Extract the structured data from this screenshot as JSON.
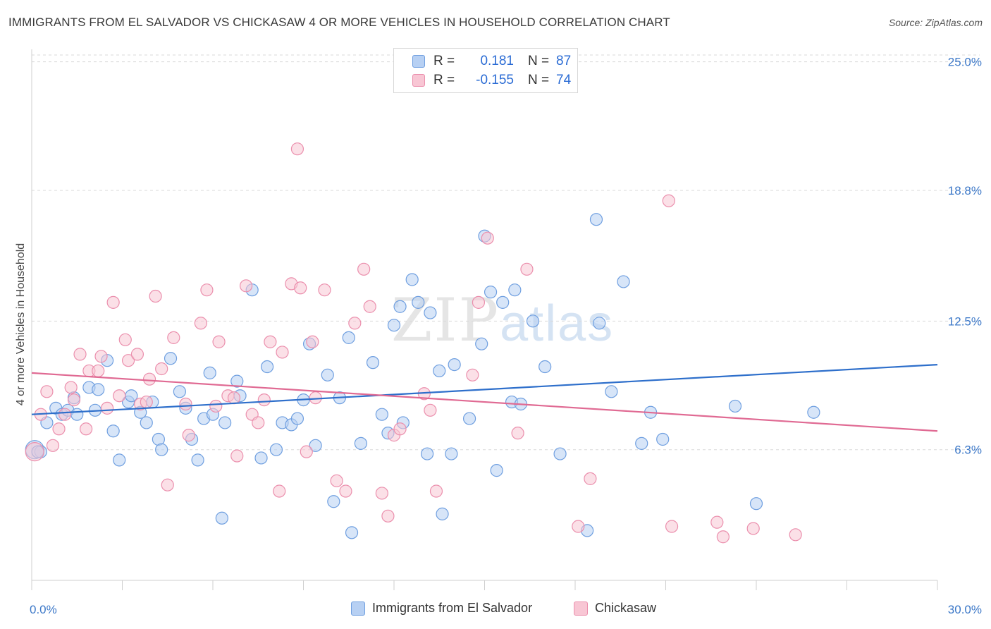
{
  "header": {
    "title": "IMMIGRANTS FROM EL SALVADOR VS CHICKASAW 4 OR MORE VEHICLES IN HOUSEHOLD CORRELATION CHART",
    "source": "Source: ZipAtlas.com"
  },
  "watermark": {
    "zip": "ZIP",
    "atlas": "atlas"
  },
  "legend_top": {
    "rows": [
      {
        "r_label": "R =",
        "r_value": "0.181",
        "n_label": "N =",
        "n_value": "87"
      },
      {
        "r_label": "R =",
        "r_value": "-0.155",
        "n_label": "N =",
        "n_value": "74"
      }
    ]
  },
  "colors": {
    "blue_fill": "#b7d0f3",
    "blue_stroke": "#6f9fe0",
    "blue_line": "#2e6fcb",
    "pink_fill": "#f8c6d4",
    "pink_stroke": "#eb8fad",
    "pink_line": "#e06a93",
    "tick_label": "#3c78c8",
    "grid": "#d9d9d9"
  },
  "chart_data": {
    "type": "scatter",
    "xlabel": "",
    "ylabel": "4 or more Vehicles in Household",
    "xlim": [
      0,
      30
    ],
    "ylim": [
      0,
      25.6
    ],
    "x_tick_labels": [
      {
        "value": 0,
        "label": "0.0%"
      },
      {
        "value": 30,
        "label": "30.0%"
      }
    ],
    "y_tick_labels": [
      {
        "value": 6.3,
        "label": "6.3%"
      },
      {
        "value": 12.5,
        "label": "12.5%"
      },
      {
        "value": 18.8,
        "label": "18.8%"
      },
      {
        "value": 25.0,
        "label": "25.0%"
      }
    ],
    "x_minor_ticks": [
      0,
      3,
      6,
      9,
      12,
      15,
      18,
      21,
      24,
      27,
      30
    ],
    "grid": "horizontal dashed",
    "legend_position": "bottom",
    "series": [
      {
        "name": "Immigrants from El Salvador",
        "trend": {
          "x": [
            0,
            30
          ],
          "y": [
            8.0,
            10.4
          ]
        },
        "points": [
          [
            0.1,
            6.3
          ],
          [
            0.3,
            6.2
          ],
          [
            0.5,
            7.6
          ],
          [
            0.8,
            8.3
          ],
          [
            1.0,
            8.0
          ],
          [
            1.2,
            8.2
          ],
          [
            1.4,
            8.8
          ],
          [
            1.5,
            8.0
          ],
          [
            1.9,
            9.3
          ],
          [
            2.1,
            8.2
          ],
          [
            2.2,
            9.2
          ],
          [
            2.5,
            10.6
          ],
          [
            2.7,
            7.2
          ],
          [
            2.9,
            5.8
          ],
          [
            3.2,
            8.6
          ],
          [
            3.3,
            8.9
          ],
          [
            3.6,
            8.1
          ],
          [
            3.8,
            7.6
          ],
          [
            4.0,
            8.6
          ],
          [
            4.2,
            6.8
          ],
          [
            4.3,
            6.3
          ],
          [
            4.6,
            10.7
          ],
          [
            4.9,
            9.1
          ],
          [
            5.1,
            8.3
          ],
          [
            5.3,
            6.8
          ],
          [
            5.5,
            5.8
          ],
          [
            5.7,
            7.8
          ],
          [
            5.9,
            10.0
          ],
          [
            6.0,
            8.0
          ],
          [
            6.3,
            3.0
          ],
          [
            6.4,
            7.6
          ],
          [
            6.8,
            9.6
          ],
          [
            6.9,
            8.9
          ],
          [
            7.3,
            14.0
          ],
          [
            7.6,
            5.9
          ],
          [
            7.8,
            10.3
          ],
          [
            8.1,
            6.3
          ],
          [
            8.3,
            7.6
          ],
          [
            8.6,
            7.5
          ],
          [
            8.8,
            7.8
          ],
          [
            9.0,
            8.7
          ],
          [
            9.2,
            11.4
          ],
          [
            9.4,
            6.5
          ],
          [
            9.8,
            9.9
          ],
          [
            10.0,
            3.8
          ],
          [
            10.2,
            8.8
          ],
          [
            10.5,
            11.7
          ],
          [
            10.6,
            2.3
          ],
          [
            10.9,
            6.6
          ],
          [
            11.3,
            10.5
          ],
          [
            11.6,
            8.0
          ],
          [
            11.8,
            7.1
          ],
          [
            12.0,
            12.3
          ],
          [
            12.2,
            13.2
          ],
          [
            12.3,
            7.6
          ],
          [
            12.6,
            14.5
          ],
          [
            12.8,
            13.4
          ],
          [
            13.1,
            6.1
          ],
          [
            13.2,
            12.9
          ],
          [
            13.5,
            10.1
          ],
          [
            13.6,
            3.2
          ],
          [
            13.9,
            6.1
          ],
          [
            14.0,
            10.4
          ],
          [
            14.5,
            7.8
          ],
          [
            14.9,
            11.4
          ],
          [
            15.0,
            16.6
          ],
          [
            15.2,
            13.9
          ],
          [
            15.4,
            5.3
          ],
          [
            15.6,
            13.4
          ],
          [
            15.9,
            8.6
          ],
          [
            16.0,
            14.0
          ],
          [
            16.2,
            8.5
          ],
          [
            16.6,
            12.5
          ],
          [
            17.0,
            10.3
          ],
          [
            17.5,
            6.1
          ],
          [
            18.4,
            2.4
          ],
          [
            18.7,
            17.4
          ],
          [
            18.8,
            12.4
          ],
          [
            19.2,
            9.1
          ],
          [
            19.6,
            14.4
          ],
          [
            20.2,
            6.6
          ],
          [
            20.5,
            8.1
          ],
          [
            20.9,
            6.8
          ],
          [
            23.3,
            8.4
          ],
          [
            24.0,
            3.7
          ],
          [
            25.9,
            8.1
          ],
          [
            0.2,
            6.2
          ]
        ]
      },
      {
        "name": "Chickasaw",
        "trend": {
          "x": [
            0,
            30
          ],
          "y": [
            10.0,
            7.2
          ]
        },
        "points": [
          [
            0.1,
            6.2
          ],
          [
            0.3,
            8.0
          ],
          [
            0.5,
            9.1
          ],
          [
            0.7,
            6.5
          ],
          [
            0.9,
            7.3
          ],
          [
            1.1,
            8.0
          ],
          [
            1.3,
            9.3
          ],
          [
            1.4,
            8.7
          ],
          [
            1.6,
            10.9
          ],
          [
            1.8,
            7.3
          ],
          [
            1.9,
            10.1
          ],
          [
            2.2,
            10.1
          ],
          [
            2.3,
            10.8
          ],
          [
            2.5,
            8.3
          ],
          [
            2.7,
            13.4
          ],
          [
            2.9,
            8.9
          ],
          [
            3.1,
            11.6
          ],
          [
            3.2,
            10.6
          ],
          [
            3.5,
            10.9
          ],
          [
            3.6,
            8.5
          ],
          [
            3.8,
            8.6
          ],
          [
            3.9,
            9.7
          ],
          [
            4.1,
            13.7
          ],
          [
            4.3,
            10.2
          ],
          [
            4.5,
            4.6
          ],
          [
            4.7,
            11.7
          ],
          [
            5.1,
            8.5
          ],
          [
            5.2,
            7.0
          ],
          [
            5.6,
            12.4
          ],
          [
            5.8,
            14.0
          ],
          [
            6.1,
            8.4
          ],
          [
            6.2,
            11.5
          ],
          [
            6.5,
            8.9
          ],
          [
            6.7,
            8.8
          ],
          [
            6.8,
            6.0
          ],
          [
            7.1,
            14.2
          ],
          [
            7.3,
            8.0
          ],
          [
            7.5,
            7.6
          ],
          [
            7.7,
            8.7
          ],
          [
            7.9,
            11.5
          ],
          [
            8.2,
            4.3
          ],
          [
            8.3,
            11.0
          ],
          [
            8.6,
            14.3
          ],
          [
            8.8,
            20.8
          ],
          [
            8.9,
            14.1
          ],
          [
            9.1,
            6.2
          ],
          [
            9.3,
            11.5
          ],
          [
            9.4,
            8.8
          ],
          [
            9.7,
            14.0
          ],
          [
            10.1,
            4.8
          ],
          [
            10.4,
            4.3
          ],
          [
            10.7,
            12.4
          ],
          [
            11.0,
            15.0
          ],
          [
            11.2,
            13.2
          ],
          [
            11.6,
            4.2
          ],
          [
            11.8,
            3.1
          ],
          [
            12.0,
            7.0
          ],
          [
            12.2,
            7.3
          ],
          [
            13.0,
            9.0
          ],
          [
            13.2,
            8.2
          ],
          [
            13.4,
            4.3
          ],
          [
            14.6,
            9.9
          ],
          [
            14.8,
            13.4
          ],
          [
            15.1,
            16.5
          ],
          [
            16.1,
            7.1
          ],
          [
            16.4,
            15.0
          ],
          [
            18.1,
            2.6
          ],
          [
            18.5,
            4.9
          ],
          [
            21.1,
            18.3
          ],
          [
            21.2,
            2.6
          ],
          [
            22.7,
            2.8
          ],
          [
            22.9,
            2.1
          ],
          [
            23.9,
            2.5
          ],
          [
            25.3,
            2.2
          ]
        ]
      }
    ]
  },
  "legend_bottom": {
    "items": [
      {
        "label": "Immigrants from El Salvador"
      },
      {
        "label": "Chickasaw"
      }
    ]
  }
}
